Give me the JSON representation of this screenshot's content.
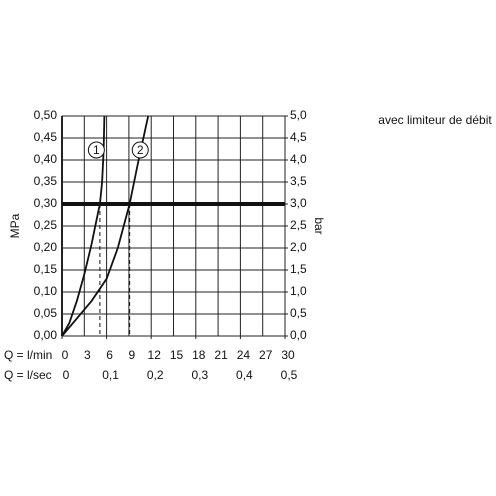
{
  "chart_data": {
    "type": "line",
    "annotation": "avec limiteur de débit",
    "y_label": "MPa",
    "y2_label": "bar",
    "x_label": "Q = l/min",
    "x2_label": "Q = l/sec",
    "xlim": [
      0,
      30
    ],
    "xticks": [
      0,
      3,
      6,
      9,
      12,
      15,
      18,
      21,
      24,
      27,
      30
    ],
    "x2lim": [
      0,
      0.5
    ],
    "x2ticks": [
      0,
      {
        "value": 0.1,
        "label": "0,1"
      },
      {
        "value": 0.2,
        "label": "0,2"
      },
      {
        "value": 0.3,
        "label": "0,3"
      },
      {
        "value": 0.4,
        "label": "0,4"
      },
      {
        "value": 0.5,
        "label": "0,5"
      }
    ],
    "ylim": [
      0,
      0.5
    ],
    "yticks": [
      {
        "value": 0,
        "label": "0,00"
      },
      {
        "value": 0.05,
        "label": "0,05"
      },
      {
        "value": 0.1,
        "label": "0,10"
      },
      {
        "value": 0.15,
        "label": "0,15"
      },
      {
        "value": 0.2,
        "label": "0,20"
      },
      {
        "value": 0.25,
        "label": "0,25"
      },
      {
        "value": 0.3,
        "label": "0,30"
      },
      {
        "value": 0.35,
        "label": "0,35"
      },
      {
        "value": 0.4,
        "label": "0,40"
      },
      {
        "value": 0.45,
        "label": "0,45"
      },
      {
        "value": 0.5,
        "label": "0,50"
      }
    ],
    "y2lim": [
      0,
      5
    ],
    "y2ticks": [
      {
        "value": 0,
        "label": "0,0"
      },
      {
        "value": 0.5,
        "label": "0,5"
      },
      {
        "value": 1,
        "label": "1,0"
      },
      {
        "value": 1.5,
        "label": "1,5"
      },
      {
        "value": 2,
        "label": "2,0"
      },
      {
        "value": 2.5,
        "label": "2,5"
      },
      {
        "value": 3,
        "label": "3,0"
      },
      {
        "value": 3.5,
        "label": "3,5"
      },
      {
        "value": 4,
        "label": "4,0"
      },
      {
        "value": 4.5,
        "label": "4,5"
      },
      {
        "value": 5,
        "label": "5,0"
      }
    ],
    "reference_line": 0.3,
    "grid": true,
    "series": [
      {
        "name": "1",
        "color": "#111111",
        "x": [
          0,
          1,
          2,
          3,
          4,
          4.6,
          5.1,
          5.4,
          5.6,
          5.7
        ],
        "values": [
          0,
          0.03,
          0.08,
          0.14,
          0.21,
          0.26,
          0.3,
          0.35,
          0.42,
          0.5
        ]
      },
      {
        "name": "2",
        "color": "#111111",
        "x": [
          0,
          2,
          4,
          6,
          7.5,
          9.1,
          10.3,
          11.6
        ],
        "values": [
          0,
          0.04,
          0.08,
          0.13,
          0.2,
          0.3,
          0.4,
          0.5
        ]
      }
    ]
  }
}
